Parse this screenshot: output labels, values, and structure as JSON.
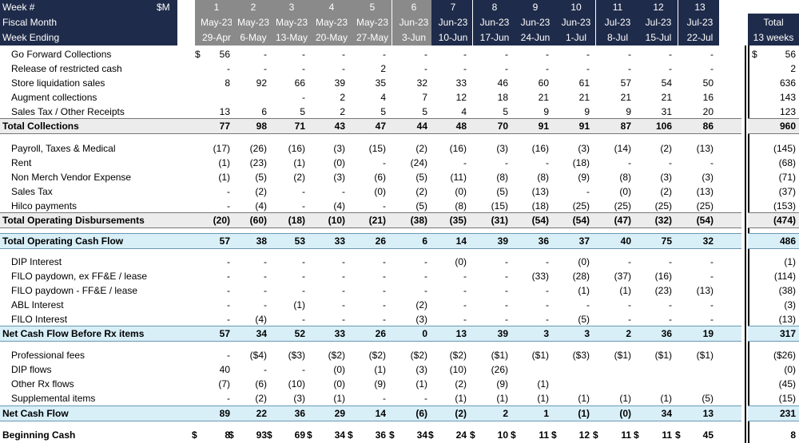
{
  "header": {
    "row_labels": [
      "Week #",
      "Fiscal Month",
      "Week Ending"
    ],
    "unit": "$M",
    "weeks": [
      {
        "num": "1",
        "month": "May-23",
        "end": "29-Apr"
      },
      {
        "num": "2",
        "month": "May-23",
        "end": "6-May"
      },
      {
        "num": "3",
        "month": "May-23",
        "end": "13-May"
      },
      {
        "num": "4",
        "month": "May-23",
        "end": "20-May"
      },
      {
        "num": "5",
        "month": "May-23",
        "end": "27-May"
      },
      {
        "num": "6",
        "month": "Jun-23",
        "end": "3-Jun"
      },
      {
        "num": "7",
        "month": "Jun-23",
        "end": "10-Jun"
      },
      {
        "num": "8",
        "month": "Jun-23",
        "end": "17-Jun"
      },
      {
        "num": "9",
        "month": "Jun-23",
        "end": "24-Jun"
      },
      {
        "num": "10",
        "month": "Jun-23",
        "end": "1-Jul"
      },
      {
        "num": "11",
        "month": "Jul-23",
        "end": "8-Jul"
      },
      {
        "num": "12",
        "month": "Jul-23",
        "end": "15-Jul"
      },
      {
        "num": "13",
        "month": "Jul-23",
        "end": "22-Jul"
      }
    ],
    "total_label": "Total",
    "total_sub": "13 weeks"
  },
  "rows": [
    {
      "label": "Go Forward Collections",
      "dollar": "$",
      "values": [
        "56",
        "-",
        "-",
        "-",
        "-",
        "-",
        "-",
        "-",
        "-",
        "-",
        "-",
        "-",
        "-"
      ],
      "total": "56",
      "total_dollar": "$"
    },
    {
      "label": "Release of restricted cash",
      "values": [
        "-",
        "-",
        "-",
        "-",
        "2",
        "-",
        "-",
        "-",
        "-",
        "-",
        "-",
        "-",
        "-"
      ],
      "total": "2"
    },
    {
      "label": "Store liquidation sales",
      "values": [
        "8",
        "92",
        "66",
        "39",
        "35",
        "32",
        "33",
        "46",
        "60",
        "61",
        "57",
        "54",
        "50"
      ],
      "total": "636"
    },
    {
      "label": "Augment collections",
      "values": [
        "",
        "",
        "-",
        "2",
        "4",
        "7",
        "12",
        "18",
        "21",
        "21",
        "21",
        "21",
        "16"
      ],
      "total": "143"
    },
    {
      "label": "Sales Tax / Other Receipts",
      "values": [
        "13",
        "6",
        "5",
        "2",
        "5",
        "5",
        "4",
        "5",
        "9",
        "9",
        "9",
        "31",
        "20"
      ],
      "total": "123"
    },
    {
      "label": "Total Collections",
      "style": "grey",
      "values": [
        "77",
        "98",
        "71",
        "43",
        "47",
        "44",
        "48",
        "70",
        "91",
        "91",
        "87",
        "106",
        "86"
      ],
      "total": "960"
    },
    {
      "label": "Payroll, Taxes & Medical",
      "values": [
        "(17)",
        "(26)",
        "(16)",
        "(3)",
        "(15)",
        "(2)",
        "(16)",
        "(3)",
        "(16)",
        "(3)",
        "(14)",
        "(2)",
        "(13)"
      ],
      "total": "(145)"
    },
    {
      "label": "Rent",
      "values": [
        "(1)",
        "(23)",
        "(1)",
        "(0)",
        "-",
        "(24)",
        "-",
        "-",
        "-",
        "(18)",
        "-",
        "-",
        "-"
      ],
      "total": "(68)"
    },
    {
      "label": "Non Merch Vendor Expense",
      "values": [
        "(1)",
        "(5)",
        "(2)",
        "(3)",
        "(6)",
        "(5)",
        "(11)",
        "(8)",
        "(8)",
        "(9)",
        "(8)",
        "(3)",
        "(3)"
      ],
      "total": "(71)"
    },
    {
      "label": "Sales Tax",
      "values": [
        "-",
        "(2)",
        "-",
        "-",
        "(0)",
        "(2)",
        "(0)",
        "(5)",
        "(13)",
        "-",
        "(0)",
        "(2)",
        "(13)"
      ],
      "total": "(37)"
    },
    {
      "label": "Hilco payments",
      "values": [
        "-",
        "(4)",
        "-",
        "(4)",
        "-",
        "(5)",
        "(8)",
        "(15)",
        "(18)",
        "(25)",
        "(25)",
        "(25)",
        "(25)"
      ],
      "total": "(153)"
    },
    {
      "label": "Total Operating Disbursements",
      "style": "grey",
      "values": [
        "(20)",
        "(60)",
        "(18)",
        "(10)",
        "(21)",
        "(38)",
        "(35)",
        "(31)",
        "(54)",
        "(54)",
        "(47)",
        "(32)",
        "(54)"
      ],
      "total": "(474)"
    },
    {
      "label": "Total Operating Cash Flow",
      "style": "blue",
      "values": [
        "57",
        "38",
        "53",
        "33",
        "26",
        "6",
        "14",
        "39",
        "36",
        "37",
        "40",
        "75",
        "32"
      ],
      "total": "486"
    },
    {
      "label": "DIP Interest",
      "values": [
        "-",
        "-",
        "-",
        "-",
        "-",
        "-",
        "(0)",
        "-",
        "-",
        "(0)",
        "-",
        "-",
        "-"
      ],
      "total": "(1)"
    },
    {
      "label": "FILO paydown, ex FF&E / lease",
      "values": [
        "-",
        "-",
        "-",
        "-",
        "-",
        "-",
        "-",
        "-",
        "(33)",
        "(28)",
        "(37)",
        "(16)",
        "-"
      ],
      "total": "(114)"
    },
    {
      "label": "FILO paydown - FF&E / lease",
      "values": [
        "-",
        "-",
        "-",
        "-",
        "-",
        "-",
        "-",
        "-",
        "-",
        "(1)",
        "(1)",
        "(23)",
        "(13)"
      ],
      "total": "(38)"
    },
    {
      "label": "ABL Interest",
      "values": [
        "-",
        "-",
        "(1)",
        "-",
        "-",
        "(2)",
        "-",
        "-",
        "-",
        "-",
        "-",
        "-",
        "-"
      ],
      "total": "(3)"
    },
    {
      "label": "FILO Interest",
      "values": [
        "-",
        "(4)",
        "-",
        "-",
        "-",
        "(3)",
        "-",
        "-",
        "-",
        "(5)",
        "-",
        "-",
        "-"
      ],
      "total": "(13)"
    },
    {
      "label": "Net Cash Flow Before Rx items",
      "style": "blue",
      "values": [
        "57",
        "34",
        "52",
        "33",
        "26",
        "0",
        "13",
        "39",
        "3",
        "3",
        "2",
        "36",
        "19"
      ],
      "total": "317"
    },
    {
      "label": "Professional fees",
      "values": [
        "-",
        "($4)",
        "($3)",
        "($2)",
        "($2)",
        "($2)",
        "($2)",
        "($1)",
        "($1)",
        "($3)",
        "($1)",
        "($1)",
        "($1)"
      ],
      "total": "($26)"
    },
    {
      "label": "DIP flows",
      "values": [
        "40",
        "-",
        "-",
        "(0)",
        "(1)",
        "(3)",
        "(10)",
        "(26)",
        "",
        "",
        "",
        "",
        ""
      ],
      "total": "(0)"
    },
    {
      "label": "Other Rx flows",
      "values": [
        "(7)",
        "(6)",
        "(10)",
        "(0)",
        "(9)",
        "(1)",
        "(2)",
        "(9)",
        "(1)",
        "",
        "",
        "",
        ""
      ],
      "total": "(45)"
    },
    {
      "label": "Supplemental items",
      "values": [
        "-",
        "(2)",
        "(3)",
        "(1)",
        "-",
        "-",
        "(1)",
        "(1)",
        "(1)",
        "(1)",
        "(1)",
        "(1)",
        "(5)"
      ],
      "total": "(15)"
    },
    {
      "label": "Net Cash Flow",
      "style": "blue",
      "values": [
        "89",
        "22",
        "36",
        "29",
        "14",
        "(6)",
        "(2)",
        "2",
        "1",
        "(1)",
        "(0)",
        "34",
        "13"
      ],
      "total": "231"
    },
    {
      "label": "Beginning Cash",
      "style": "bold",
      "dollar_each": true,
      "values": [
        "8",
        "93",
        "69",
        "34",
        "36",
        "34",
        "24",
        "10",
        "11",
        "12",
        "11",
        "11",
        "45"
      ],
      "total": "8"
    }
  ]
}
